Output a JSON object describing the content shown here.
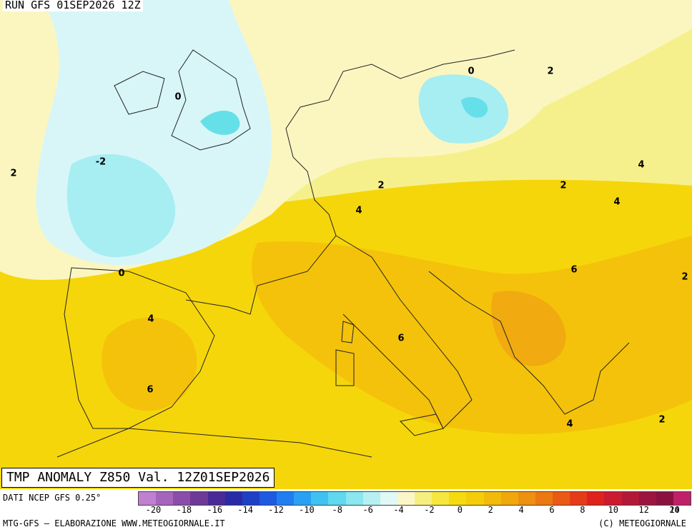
{
  "header": {
    "run_label": "RUN GFS 01SEP2026 12Z"
  },
  "map": {
    "title": "TMP ANOMALY Z850 Val. 12Z01SEP2026",
    "colors": {
      "sea_base": "#f6f08c",
      "cold_1": "#d8f6f8",
      "cold_2": "#a6eef2",
      "cold_3": "#66e0e8",
      "neutral": "#fbf6c0",
      "warm_2": "#f7ea52",
      "warm_4": "#f5d60a",
      "warm_6": "#f4c20a",
      "warm_8": "#f1aa10",
      "coast": "#222222"
    },
    "contour_labels": [
      {
        "text": "0"
      },
      {
        "text": "-2"
      },
      {
        "text": "2"
      },
      {
        "text": "0"
      },
      {
        "text": "2"
      },
      {
        "text": "0"
      },
      {
        "text": "2"
      },
      {
        "text": "4"
      },
      {
        "text": "4"
      },
      {
        "text": "6"
      },
      {
        "text": "6"
      },
      {
        "text": "2"
      },
      {
        "text": "4"
      },
      {
        "text": "2"
      },
      {
        "text": "4"
      },
      {
        "text": "6"
      },
      {
        "text": "2"
      },
      {
        "text": "4"
      },
      {
        "text": "2"
      }
    ]
  },
  "legend": {
    "data_source": "DATI NCEP GFS 0.25°",
    "credit_left": "MTG-GFS – ELABORAZIONE WWW.METEOGIORNALE.IT",
    "credit_right": "(C) METEOGIORNALE",
    "tick_labels": [
      "-20",
      "-18",
      "-16",
      "-14",
      "-12",
      "-10",
      "-8",
      "-6",
      "-4",
      "-2",
      "0",
      "2",
      "4",
      "6",
      "8",
      "10",
      "12",
      "14",
      "16",
      "20"
    ],
    "swatches": [
      "#c080d0",
      "#a466bd",
      "#8a4eaa",
      "#6e3a98",
      "#4a2a96",
      "#2a2aa6",
      "#1f3fc4",
      "#1c5ae0",
      "#1f7ef0",
      "#2aa0f2",
      "#3fc2f2",
      "#5fd8f0",
      "#8ae6ef",
      "#b6f0f2",
      "#e0f8f6",
      "#fbf6c8",
      "#f7ee80",
      "#f6e640",
      "#f5da10",
      "#f4cc0a",
      "#f2ba0a",
      "#f0a70c",
      "#ee9010",
      "#ec7812",
      "#ea5a14",
      "#e53c18",
      "#de221c",
      "#cc1a30",
      "#b41838",
      "#9c1440",
      "#8a1040",
      "#c0206a"
    ]
  }
}
